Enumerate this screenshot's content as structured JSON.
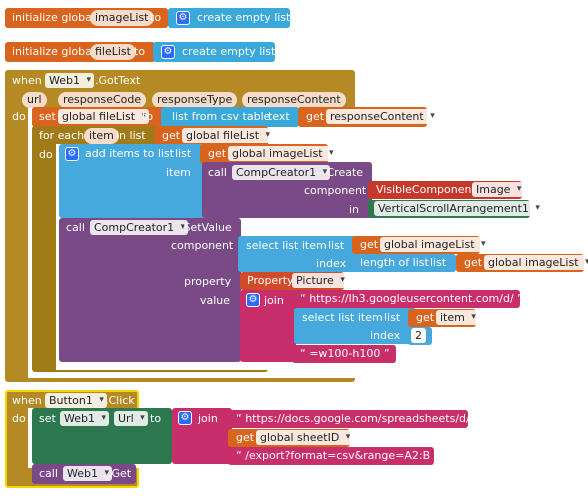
{
  "global1": {
    "init": "initialize global",
    "name": "imageList",
    "to": "to",
    "create": "create empty list"
  },
  "global2": {
    "init": "initialize global",
    "name": "fileList",
    "to": "to",
    "create": "create empty list"
  },
  "gotText": {
    "when": "when",
    "component": "Web1",
    "event": ".GotText",
    "do": "do",
    "params": [
      "url",
      "responseCode",
      "responseType",
      "responseContent"
    ],
    "set": "set",
    "setVar": "global fileList",
    "setTo": "to",
    "csv": "list from csv table",
    "csvText": "text",
    "get": "get",
    "getResponse": "responseContent",
    "foreach": "for each",
    "item": "item",
    "inlist": "in list",
    "getFileList": "global fileList",
    "do2": "do",
    "additems": "add items to list",
    "list": "list",
    "getImageList": "global imageList",
    "itemLabel": "item",
    "call": "call",
    "compCreator": "CompCreator1",
    "create": ".Create",
    "componentLabel": "component",
    "visibleComponent": "VisibleComponent",
    "image": "Image",
    "in": "in",
    "vsa": "VerticalScrollArrangement1",
    "setValue": ".SetValue",
    "selectItem": "select list item",
    "listLabel": "list",
    "index": "index",
    "length": "length of list",
    "property": "property",
    "propertyBlock": "Property",
    "picture": "Picture",
    "value": "value",
    "join": "join",
    "url1": "https://lh3.googleusercontent.com/d/",
    "getItem": "item",
    "indexNum": "2",
    "url2": "=w100-h100"
  },
  "click": {
    "when": "when",
    "component": "Button1",
    "event": ".Click",
    "do": "do",
    "set": "set",
    "web": "Web1",
    "url": "Url",
    "to": "to",
    "join": "join",
    "str1": "https://docs.google.com/spreadsheets/d/",
    "get": "get",
    "sheet": "global sheetID",
    "str2": "/export?format=csv&range=A2:B",
    "call": "call",
    "web2": "Web1",
    "getMethod": ".Get"
  }
}
